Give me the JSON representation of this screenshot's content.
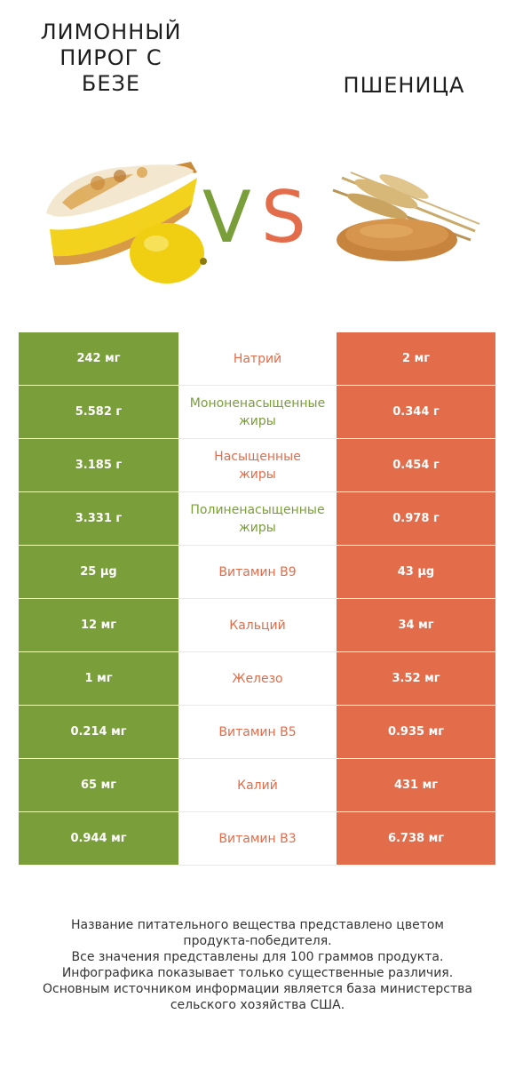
{
  "header": {
    "left_title": "ЛИМОННЫЙ\nПИРОГ С\nБЕЗЕ",
    "right_title": "ПШЕНИЦА",
    "vs_v": "V",
    "vs_s": "S"
  },
  "colors": {
    "left": "#7a9e3a",
    "right": "#e36c4a",
    "separator_left": "#ffffff",
    "separator_right": "#ffffff",
    "mid_separator": "#e8e8e8"
  },
  "rows": [
    {
      "left": "242 мг",
      "nutrient": [
        "Натрий"
      ],
      "right": "2 мг",
      "winner": "right"
    },
    {
      "left": "5.582 г",
      "nutrient": [
        "Мононенасыщенные",
        "жиры"
      ],
      "right": "0.344 г",
      "winner": "left"
    },
    {
      "left": "3.185 г",
      "nutrient": [
        "Насыщенные",
        "жиры"
      ],
      "right": "0.454 г",
      "winner": "right"
    },
    {
      "left": "3.331 г",
      "nutrient": [
        "Полиненасыщенные",
        "жиры"
      ],
      "right": "0.978 г",
      "winner": "left"
    },
    {
      "left": "25 µg",
      "nutrient": [
        "Витамин B9"
      ],
      "right": "43 µg",
      "winner": "right"
    },
    {
      "left": "12 мг",
      "nutrient": [
        "Кальций"
      ],
      "right": "34 мг",
      "winner": "right"
    },
    {
      "left": "1 мг",
      "nutrient": [
        "Железо"
      ],
      "right": "3.52 мг",
      "winner": "right"
    },
    {
      "left": "0.214 мг",
      "nutrient": [
        "Витамин B5"
      ],
      "right": "0.935 мг",
      "winner": "right"
    },
    {
      "left": "65 мг",
      "nutrient": [
        "Калий"
      ],
      "right": "431 мг",
      "winner": "right"
    },
    {
      "left": "0.944 мг",
      "nutrient": [
        "Витамин B3"
      ],
      "right": "6.738 мг",
      "winner": "right"
    }
  ],
  "footer": [
    "Название питательного вещества представлено цветом",
    "продукта-победителя.",
    "Все значения представлены для 100 граммов продукта.",
    "Инфографика показывает только существенные различия.",
    "Основным источником информации является база министерства",
    "сельского хозяйства США."
  ]
}
